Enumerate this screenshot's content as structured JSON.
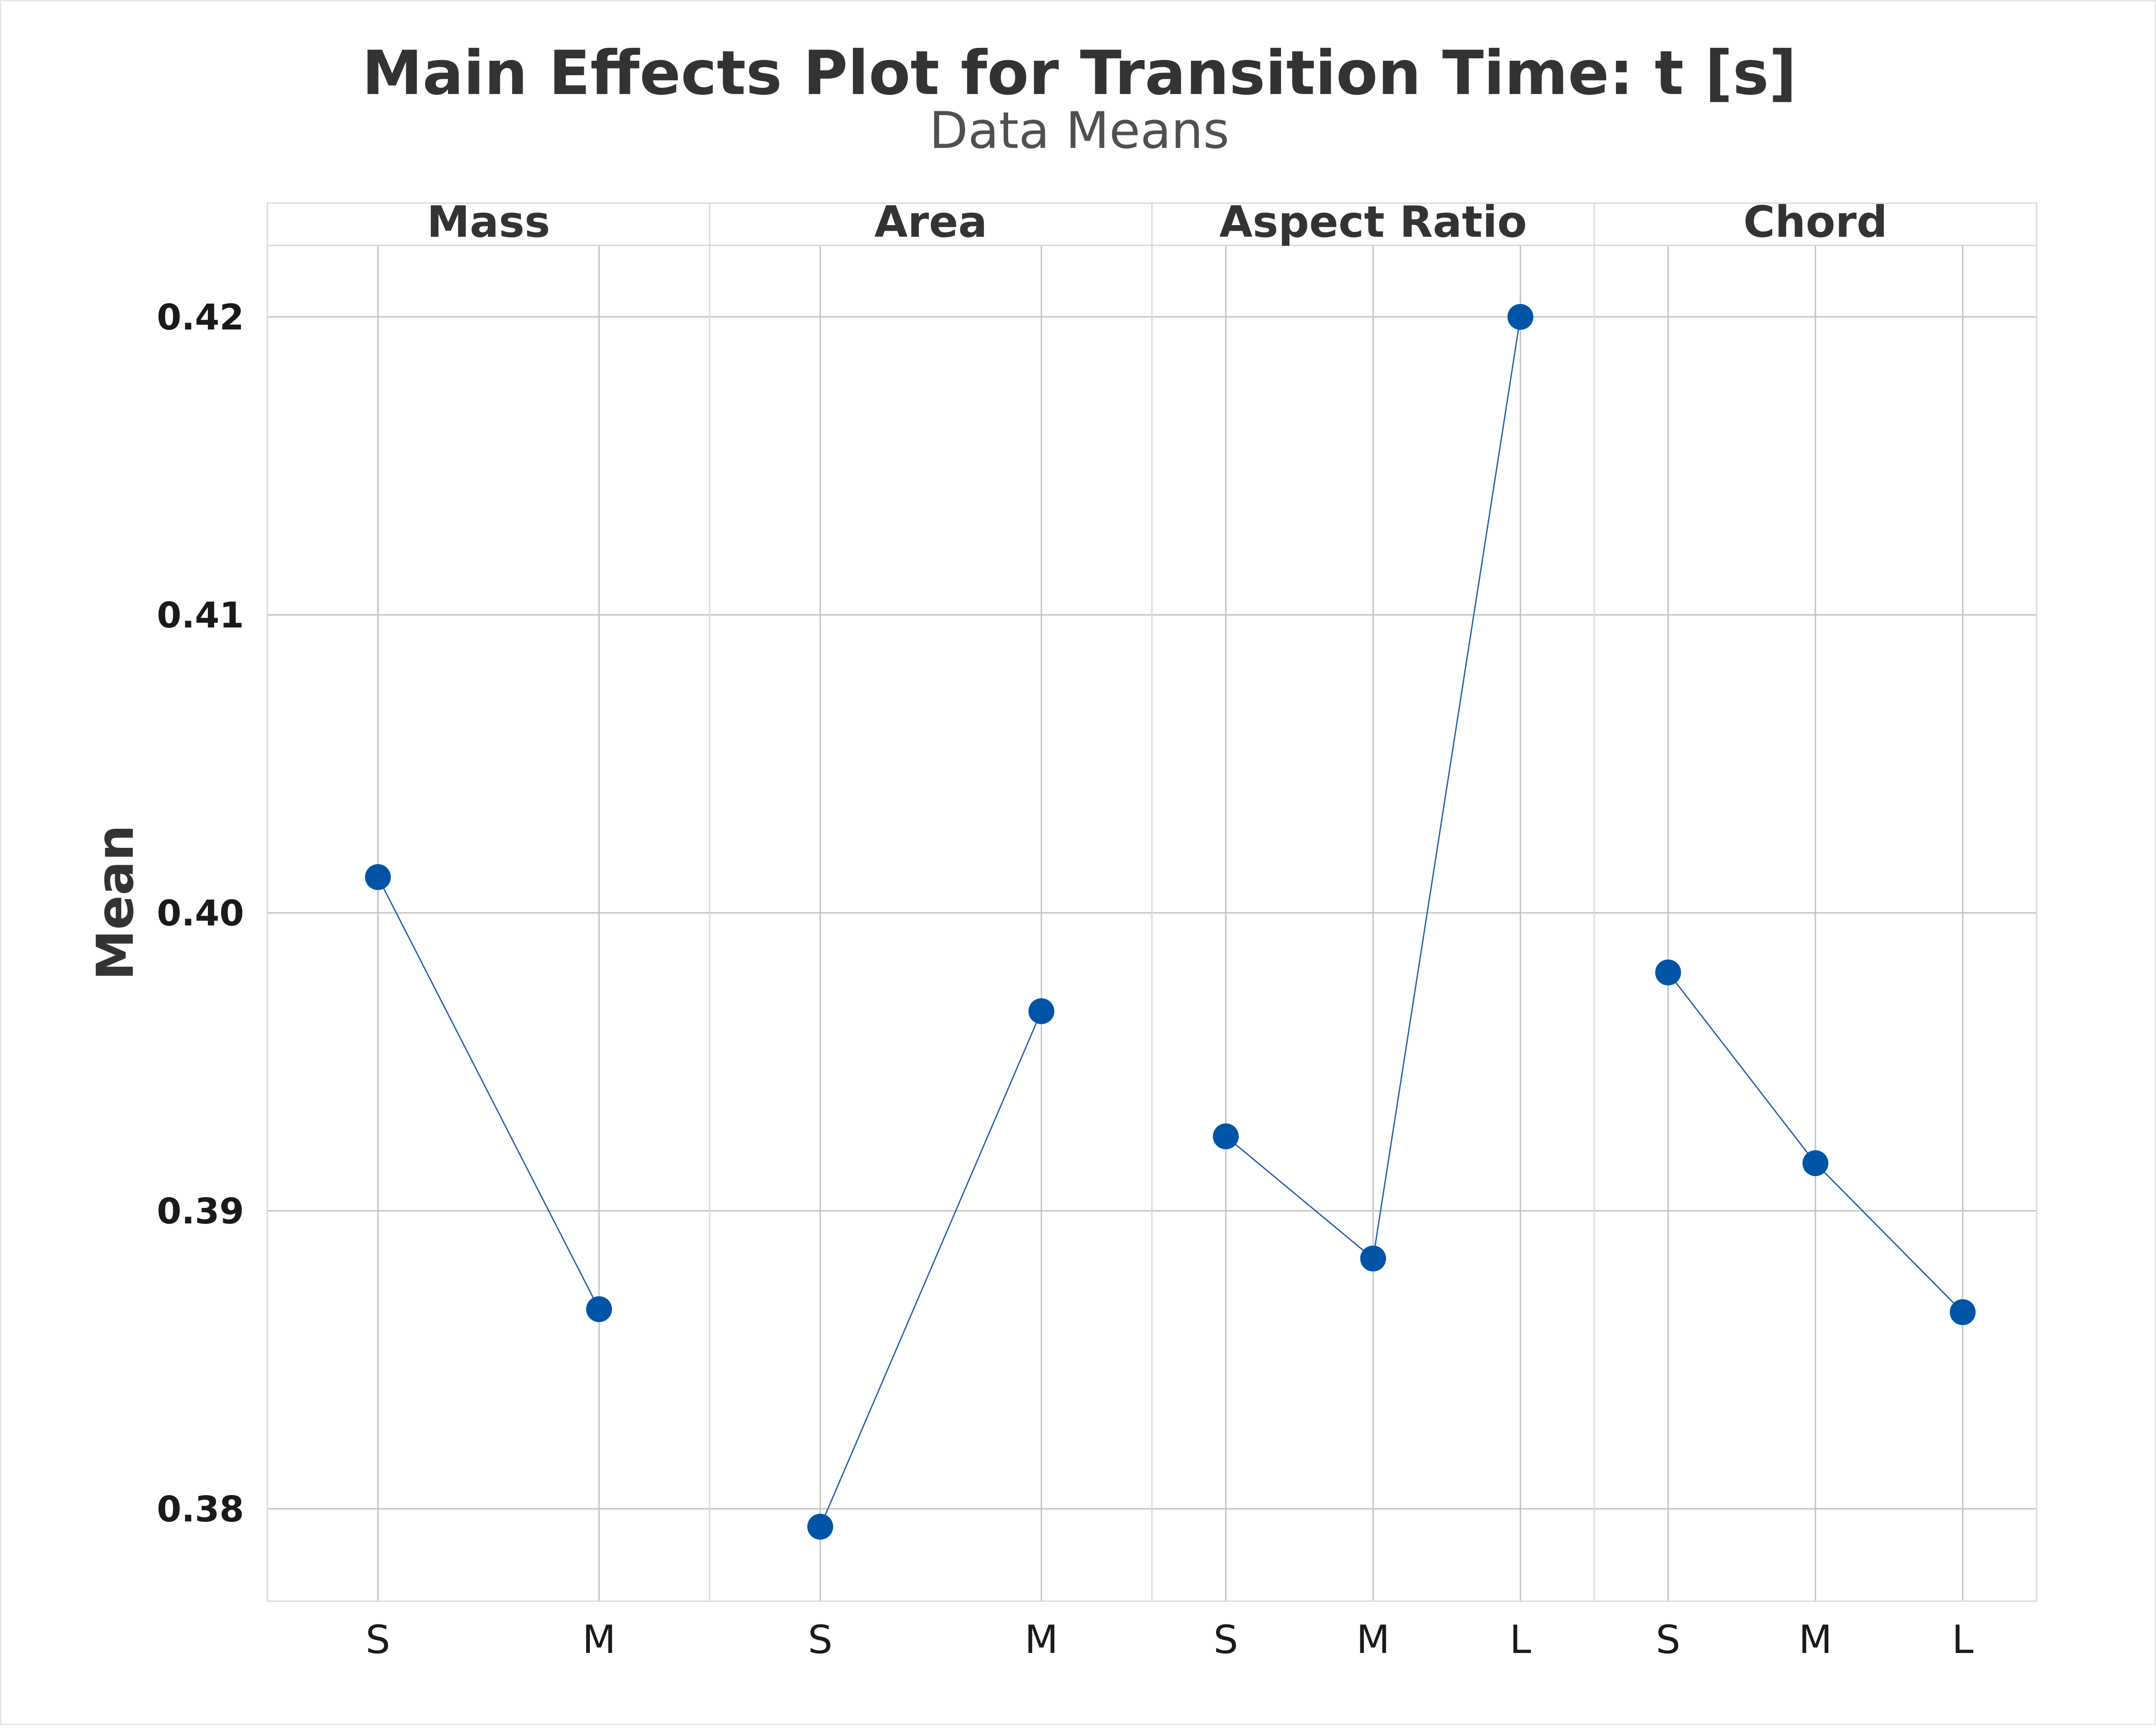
{
  "chart_data": {
    "type": "line",
    "title": "Main Effects Plot for Transition Time: t [s]",
    "subtitle": "Data Means",
    "ylabel": "Mean",
    "ylim": [
      0.3769,
      0.4224
    ],
    "yticks": [
      "0.38",
      "0.39",
      "0.40",
      "0.41",
      "0.42"
    ],
    "grid": true,
    "colors": {
      "series": "#0054A6",
      "line": "#1F5FA8",
      "grid": "#BFBFBF",
      "frame": "#D9D9D9",
      "text": "#333333"
    },
    "panels": [
      {
        "name": "Mass",
        "categories": [
          "S",
          "M"
        ],
        "values": [
          0.4012,
          0.3867
        ]
      },
      {
        "name": "Area",
        "categories": [
          "S",
          "M"
        ],
        "values": [
          0.3794,
          0.3967
        ]
      },
      {
        "name": "Aspect Ratio",
        "categories": [
          "S",
          "M",
          "L"
        ],
        "values": [
          0.3925,
          0.3884,
          0.42
        ]
      },
      {
        "name": "Chord",
        "categories": [
          "S",
          "M",
          "L"
        ],
        "values": [
          0.398,
          0.3916,
          0.3866
        ]
      }
    ]
  }
}
